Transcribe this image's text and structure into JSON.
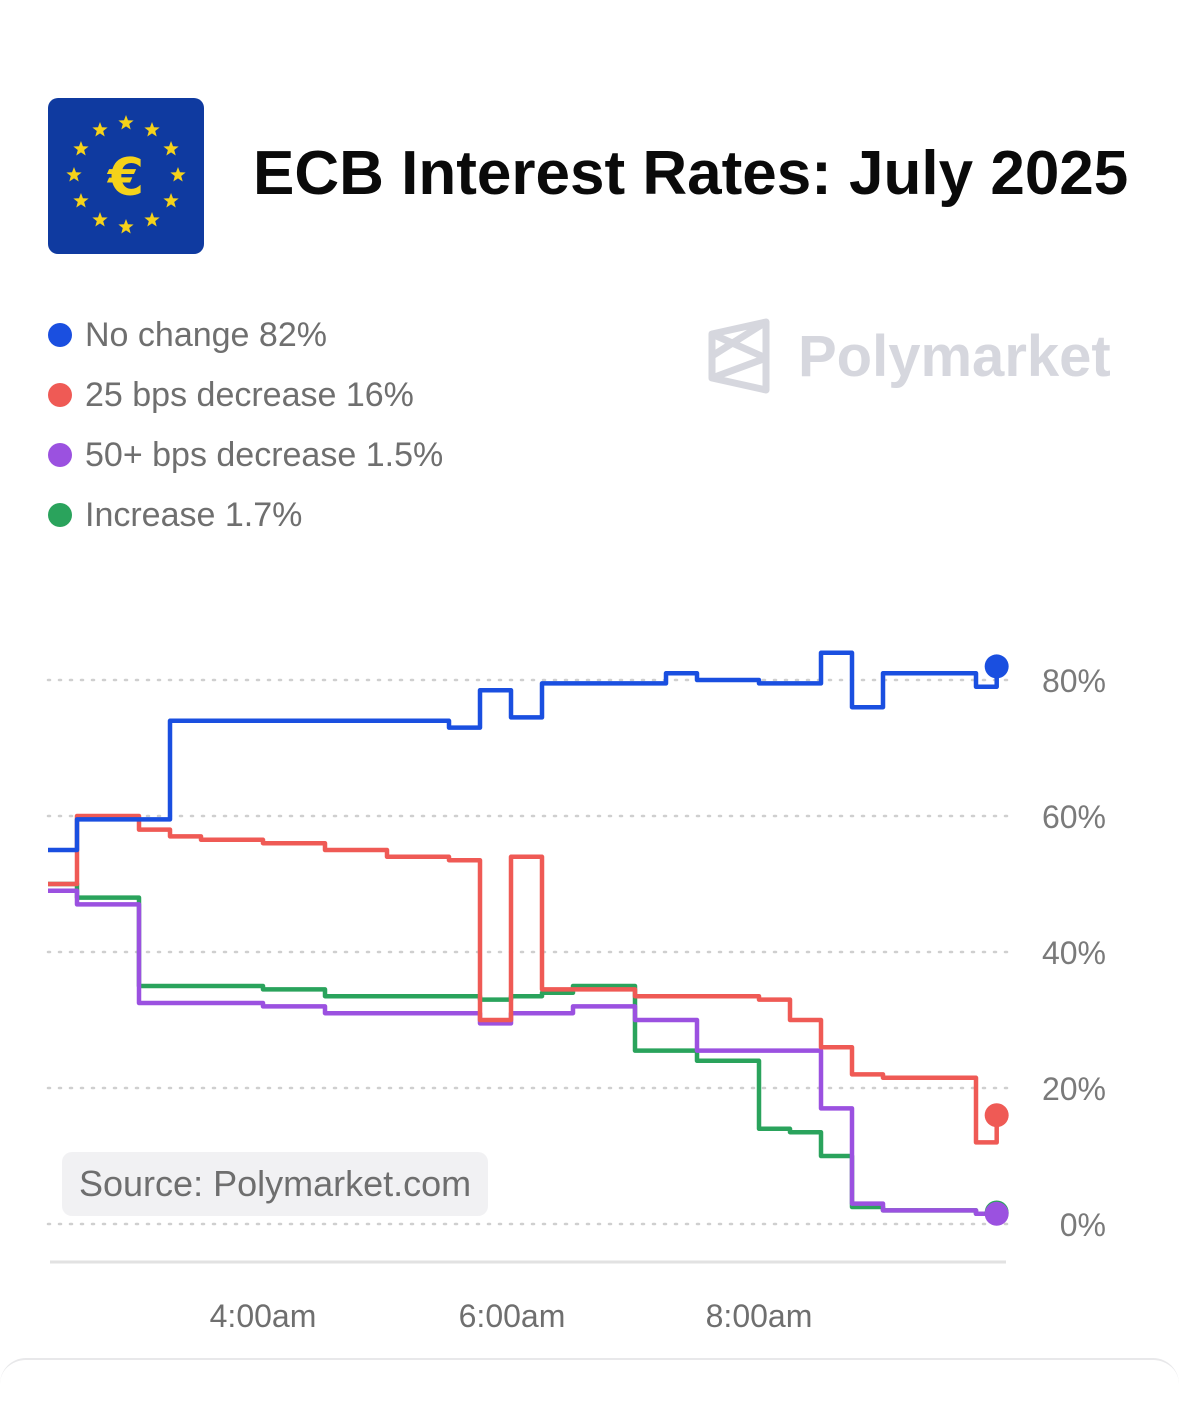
{
  "header": {
    "title": "ECB Interest Rates: July 2025",
    "logo_icon": "eu-flag-euro-icon"
  },
  "watermark": {
    "brand": "Polymarket",
    "icon": "polymarket-logo-icon"
  },
  "source_label": "Source: Polymarket.com",
  "colors": {
    "no_change": "#1a4fe0",
    "decrease_25": "#ef5a55",
    "decrease_50": "#9b51e0",
    "increase": "#2aa35c"
  },
  "chart_data": {
    "type": "line",
    "title": "ECB Interest Rates: July 2025",
    "xlabel": "",
    "ylabel": "",
    "ylim": [
      0,
      85
    ],
    "x_ticks": [
      "4:00am",
      "6:00am",
      "8:00am"
    ],
    "y_ticks": [
      "0%",
      "20%",
      "40%",
      "60%",
      "80%"
    ],
    "y_tick_values": [
      0,
      20,
      40,
      60,
      80
    ],
    "grid": true,
    "legend_position": "top-left",
    "x": [
      "2:15am",
      "2:30am",
      "3:00am",
      "3:15am",
      "3:30am",
      "4:00am",
      "4:30am",
      "5:00am",
      "5:30am",
      "5:45am",
      "6:00am",
      "6:15am",
      "6:30am",
      "7:00am",
      "7:15am",
      "7:30am",
      "8:00am",
      "8:15am",
      "8:30am",
      "8:45am",
      "9:00am",
      "9:30am",
      "9:45am",
      "9:55am"
    ],
    "series": [
      {
        "name": "No change",
        "legend_value": "82%",
        "color": "#1a4fe0",
        "values": [
          55,
          59.5,
          59.5,
          74,
          74,
          74,
          74,
          74,
          73,
          78.5,
          74.5,
          79.5,
          79.5,
          79.5,
          81,
          80,
          79.5,
          79.5,
          84,
          76,
          81,
          81,
          79,
          82
        ]
      },
      {
        "name": "25 bps decrease",
        "legend_value": "16%",
        "color": "#ef5a55",
        "values": [
          50,
          60,
          58,
          57,
          56.5,
          56,
          55,
          54,
          53.5,
          30,
          54,
          34.5,
          34.5,
          33.5,
          33.5,
          33.5,
          33,
          30,
          26,
          22,
          21.5,
          21.5,
          12,
          16
        ]
      },
      {
        "name": "50+ bps decrease",
        "legend_value": "1.5%",
        "color": "#9b51e0",
        "values": [
          49,
          47,
          32.5,
          32.5,
          32.5,
          32,
          31,
          31,
          31,
          29.5,
          31,
          31,
          32,
          30,
          30,
          25.5,
          25.5,
          25.5,
          17,
          3,
          2,
          2,
          1.5,
          1.5
        ]
      },
      {
        "name": "Increase",
        "legend_value": "1.7%",
        "color": "#2aa35c",
        "values": [
          50,
          48,
          35,
          35,
          35,
          34.5,
          33.5,
          33.5,
          33.5,
          33,
          33.5,
          34,
          35,
          25.5,
          25.5,
          24,
          14,
          13.5,
          10,
          2.5,
          2,
          2,
          1.5,
          1.7
        ]
      }
    ]
  }
}
